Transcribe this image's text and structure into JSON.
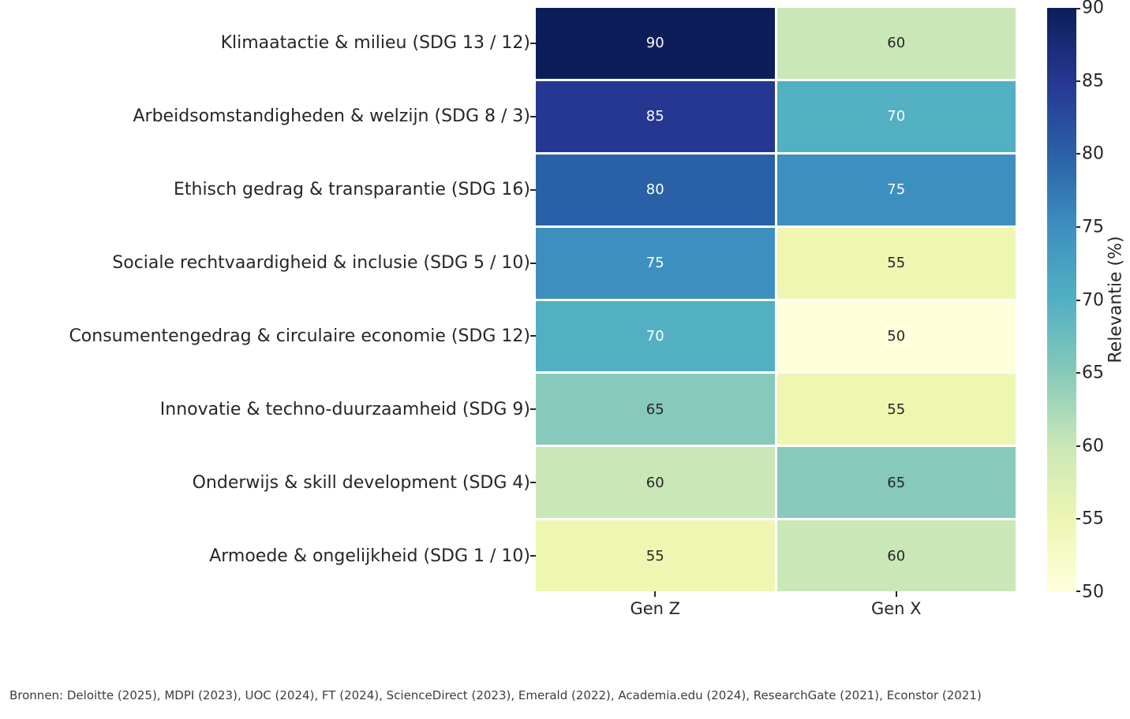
{
  "chart_data": {
    "type": "heatmap",
    "title": "",
    "rows": [
      "Klimaatactie & milieu (SDG 13 / 12)",
      "Arbeidsomstandigheden & welzijn (SDG 8 / 3)",
      "Ethisch gedrag & transparantie (SDG 16)",
      "Sociale rechtvaardigheid & inclusie (SDG 5 / 10)",
      "Consumentengedrag & circulaire economie (SDG 12)",
      "Innovatie & techno-duurzaamheid (SDG 9)",
      "Onderwijs & skill development (SDG 4)",
      "Armoede & ongelijkheid (SDG 1 / 10)"
    ],
    "columns": [
      "Gen Z",
      "Gen X"
    ],
    "values": [
      [
        90,
        60
      ],
      [
        85,
        70
      ],
      [
        80,
        75
      ],
      [
        75,
        55
      ],
      [
        70,
        50
      ],
      [
        65,
        55
      ],
      [
        60,
        65
      ],
      [
        55,
        60
      ]
    ],
    "vmin": 50,
    "vmax": 90,
    "colormap_name": "YlGnBu",
    "color_scale": {
      "90": "#0c1e59",
      "85": "#263792",
      "80": "#2a60a7",
      "75": "#3d8fc0",
      "70": "#52b0c2",
      "65": "#87c9ba",
      "60": "#cae7b7",
      "55": "#eef6b2",
      "50": "#feffdb"
    },
    "colorbar": {
      "label": "Relevantie (%)",
      "ticks": [
        90,
        85,
        80,
        75,
        70,
        65,
        60,
        55,
        50
      ]
    },
    "grid": false,
    "legend_position": "right-colorbar"
  },
  "colors": {
    "background": "#ffffff",
    "tick_text": "#262626",
    "cell_text_dark": "#262626",
    "cell_text_light": "#ffffff",
    "footer_text": "#3d3d3d",
    "cell_gap": "#ffffff"
  },
  "footer": {
    "text": "Bronnen: Deloitte (2025), MDPI (2023), UOC (2024), FT (2024), ScienceDirect (2023), Emerald (2022), Academia.edu (2024), ResearchGate (2021), Econstor (2021)"
  }
}
